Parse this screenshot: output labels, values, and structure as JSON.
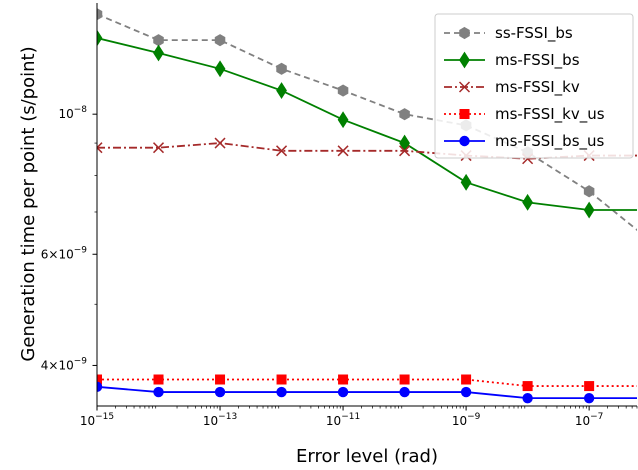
{
  "chart_data": {
    "type": "line",
    "title": "",
    "xlabel": "Error level (rad)",
    "ylabel": "Generation time per point (s/point)",
    "x_scale": "log",
    "y_scale": "log",
    "xlim": [
      1e-15,
      6e-07
    ],
    "ylim": [
      3.45e-09,
      1.5e-08
    ],
    "grid": false,
    "legend_position": "top-right",
    "x_ticks": [
      {
        "value": 1e-15,
        "base": "10",
        "exp": "−15"
      },
      {
        "value": 1e-13,
        "base": "10",
        "exp": "−13"
      },
      {
        "value": 1e-11,
        "base": "10",
        "exp": "−11"
      },
      {
        "value": 1e-09,
        "base": "10",
        "exp": "−9"
      },
      {
        "value": 1e-07,
        "base": "10",
        "exp": "−7"
      }
    ],
    "y_ticks": [
      {
        "value": 4e-09,
        "mant": "4×10",
        "exp": "−9"
      },
      {
        "value": 6e-09,
        "mant": "6×10",
        "exp": "−9"
      },
      {
        "value": 1e-08,
        "mant": "10",
        "exp": "−8"
      }
    ],
    "x": [
      1e-15,
      1e-14,
      1e-13,
      1e-12,
      1e-11,
      1e-10,
      1e-09,
      1e-08,
      1e-07,
      1e-06
    ],
    "series": [
      {
        "name": "ss-FSSI_bs",
        "color": "#808080",
        "dash": "6,4",
        "marker": "hexagon",
        "values": [
          1.44e-08,
          1.31e-08,
          1.31e-08,
          1.18e-08,
          1.09e-08,
          1e-08,
          9.6e-09,
          8.7e-09,
          7.55e-09,
          6.3e-09
        ]
      },
      {
        "name": "ms-FSSI_bs",
        "color": "#008000",
        "dash": "",
        "marker": "diamond",
        "values": [
          1.32e-08,
          1.25e-08,
          1.18e-08,
          1.09e-08,
          9.8e-09,
          9e-09,
          7.8e-09,
          7.25e-09,
          7.05e-09,
          7.05e-09
        ]
      },
      {
        "name": "ms-FSSI_kv",
        "color": "#a52a2a",
        "dash": "8,3,2,3",
        "marker": "x",
        "values": [
          8.85e-09,
          8.85e-09,
          9e-09,
          8.75e-09,
          8.75e-09,
          8.75e-09,
          8.6e-09,
          8.5e-09,
          8.6e-09,
          8.6e-09
        ]
      },
      {
        "name": "ms-FSSI_kv_us",
        "color": "#ff0000",
        "dash": "2,3",
        "marker": "square",
        "values": [
          3.8e-09,
          3.8e-09,
          3.8e-09,
          3.8e-09,
          3.8e-09,
          3.8e-09,
          3.8e-09,
          3.71e-09,
          3.71e-09,
          3.71e-09
        ]
      },
      {
        "name": "ms-FSSI_bs_us",
        "color": "#0000ff",
        "dash": "",
        "marker": "circle",
        "values": [
          3.7e-09,
          3.63e-09,
          3.63e-09,
          3.63e-09,
          3.63e-09,
          3.63e-09,
          3.63e-09,
          3.55e-09,
          3.55e-09,
          3.55e-09
        ]
      }
    ]
  }
}
